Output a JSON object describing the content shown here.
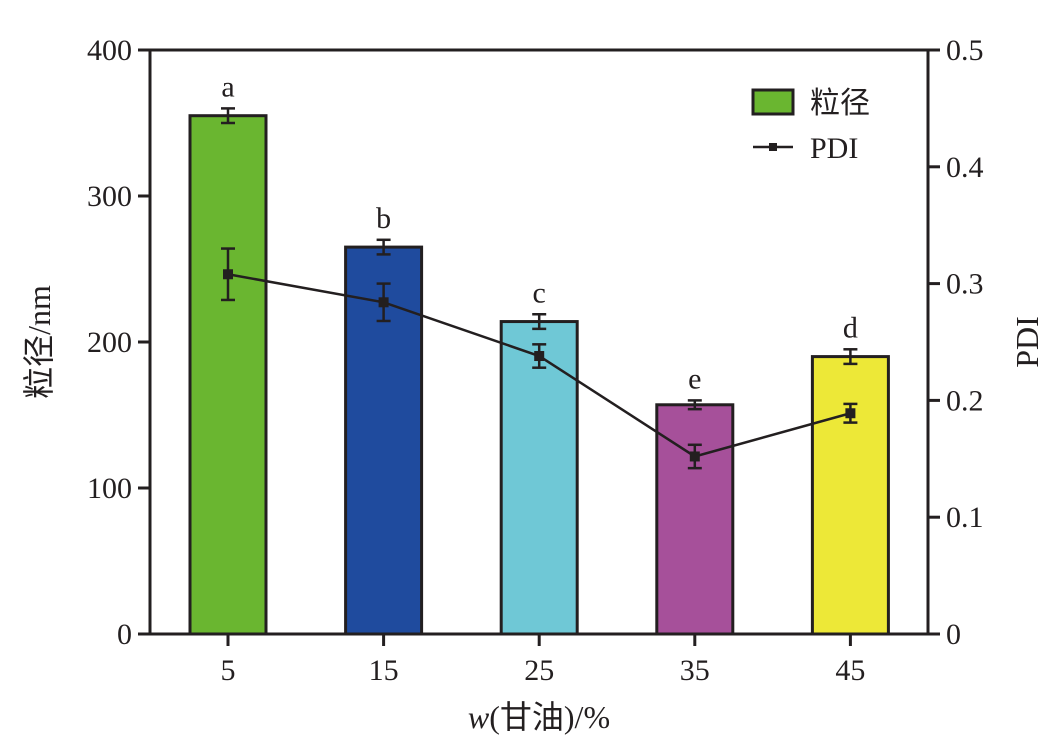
{
  "chart_data": {
    "type": "bar",
    "categories": [
      "5",
      "15",
      "25",
      "35",
      "45"
    ],
    "xlabel_italic": "w",
    "xlabel_rest": "(甘油)/%",
    "ylabel": "粒径/nm",
    "y2label": "PDI",
    "ylim": [
      0,
      400
    ],
    "y2lim": [
      0,
      0.5
    ],
    "yticks": [
      "0",
      "100",
      "200",
      "300",
      "400"
    ],
    "y2ticks": [
      "0",
      "0.1",
      "0.2",
      "0.3",
      "0.4",
      "0.5"
    ],
    "series": [
      {
        "name": "粒径",
        "type": "bar",
        "axis": "left",
        "values": [
          355,
          265,
          214,
          157,
          190
        ],
        "errors": [
          5,
          5,
          5,
          3,
          5
        ],
        "labels": [
          "a",
          "b",
          "c",
          "e",
          "d"
        ],
        "colors": [
          "#6ab630",
          "#1f4b9e",
          "#6fc8d6",
          "#a6509a",
          "#ede837"
        ]
      },
      {
        "name": "PDI",
        "type": "line",
        "axis": "right",
        "values": [
          0.308,
          0.284,
          0.238,
          0.152,
          0.189
        ],
        "errors": [
          0.022,
          0.016,
          0.01,
          0.01,
          0.008
        ]
      }
    ],
    "legend": [
      "粒径",
      "PDI"
    ],
    "legend_position": "top-right",
    "grid": false
  }
}
